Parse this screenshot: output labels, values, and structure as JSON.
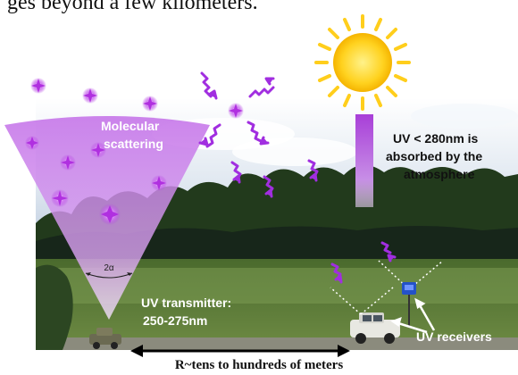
{
  "header_text": "ges beyond a few kilometers.",
  "figure": {
    "labels": {
      "molecular_line1": "Molecular",
      "molecular_line2": "scattering",
      "angle": "2α",
      "uv_absorb_line1": "UV < 280nm is",
      "uv_absorb_line2": "absorbed by the",
      "uv_absorb_line3": "atmosphere",
      "transmitter_line1": "UV transmitter:",
      "transmitter_line2": "250-275nm",
      "receivers": "UV receivers"
    },
    "range_caption": "R~tens to hundreds of meters",
    "colors": {
      "uv_purple": "#b845e8",
      "cone_top": "#c67ae8",
      "cone_bottom": "#f0dcf8",
      "sun": "#ffd21f",
      "sun_core": "#ffe24a",
      "sky": "#c9d6e6",
      "grass": "#5f7c3a",
      "trees": "#1f3018"
    },
    "icons": [
      "sun-icon",
      "uv-photon-icon",
      "vehicle-icon",
      "receiver-icon",
      "wavy-arrow-icon"
    ]
  }
}
